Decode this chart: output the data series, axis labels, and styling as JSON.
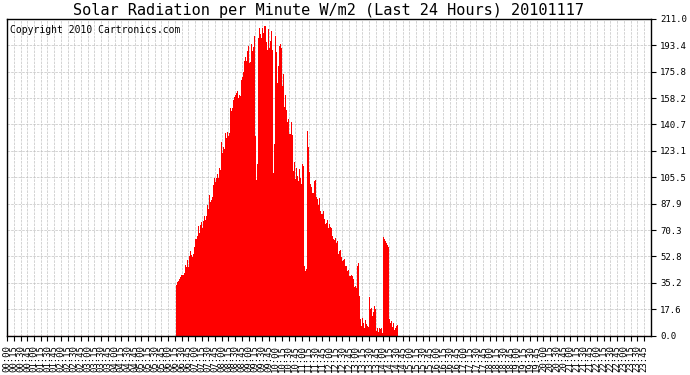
{
  "title": "Solar Radiation per Minute W/m2 (Last 24 Hours) 20101117",
  "copyright": "Copyright 2010 Cartronics.com",
  "yticks": [
    0.0,
    17.6,
    35.2,
    52.8,
    70.3,
    87.9,
    105.5,
    123.1,
    140.7,
    158.2,
    175.8,
    193.4,
    211.0
  ],
  "ymax": 211.0,
  "ymin": 0.0,
  "bar_color": "#ff0000",
  "background_color": "#ffffff",
  "grid_color": "#bbbbbb",
  "baseline_color": "#ff0000",
  "title_fontsize": 11,
  "copyright_fontsize": 7,
  "tick_fontsize": 6.5
}
